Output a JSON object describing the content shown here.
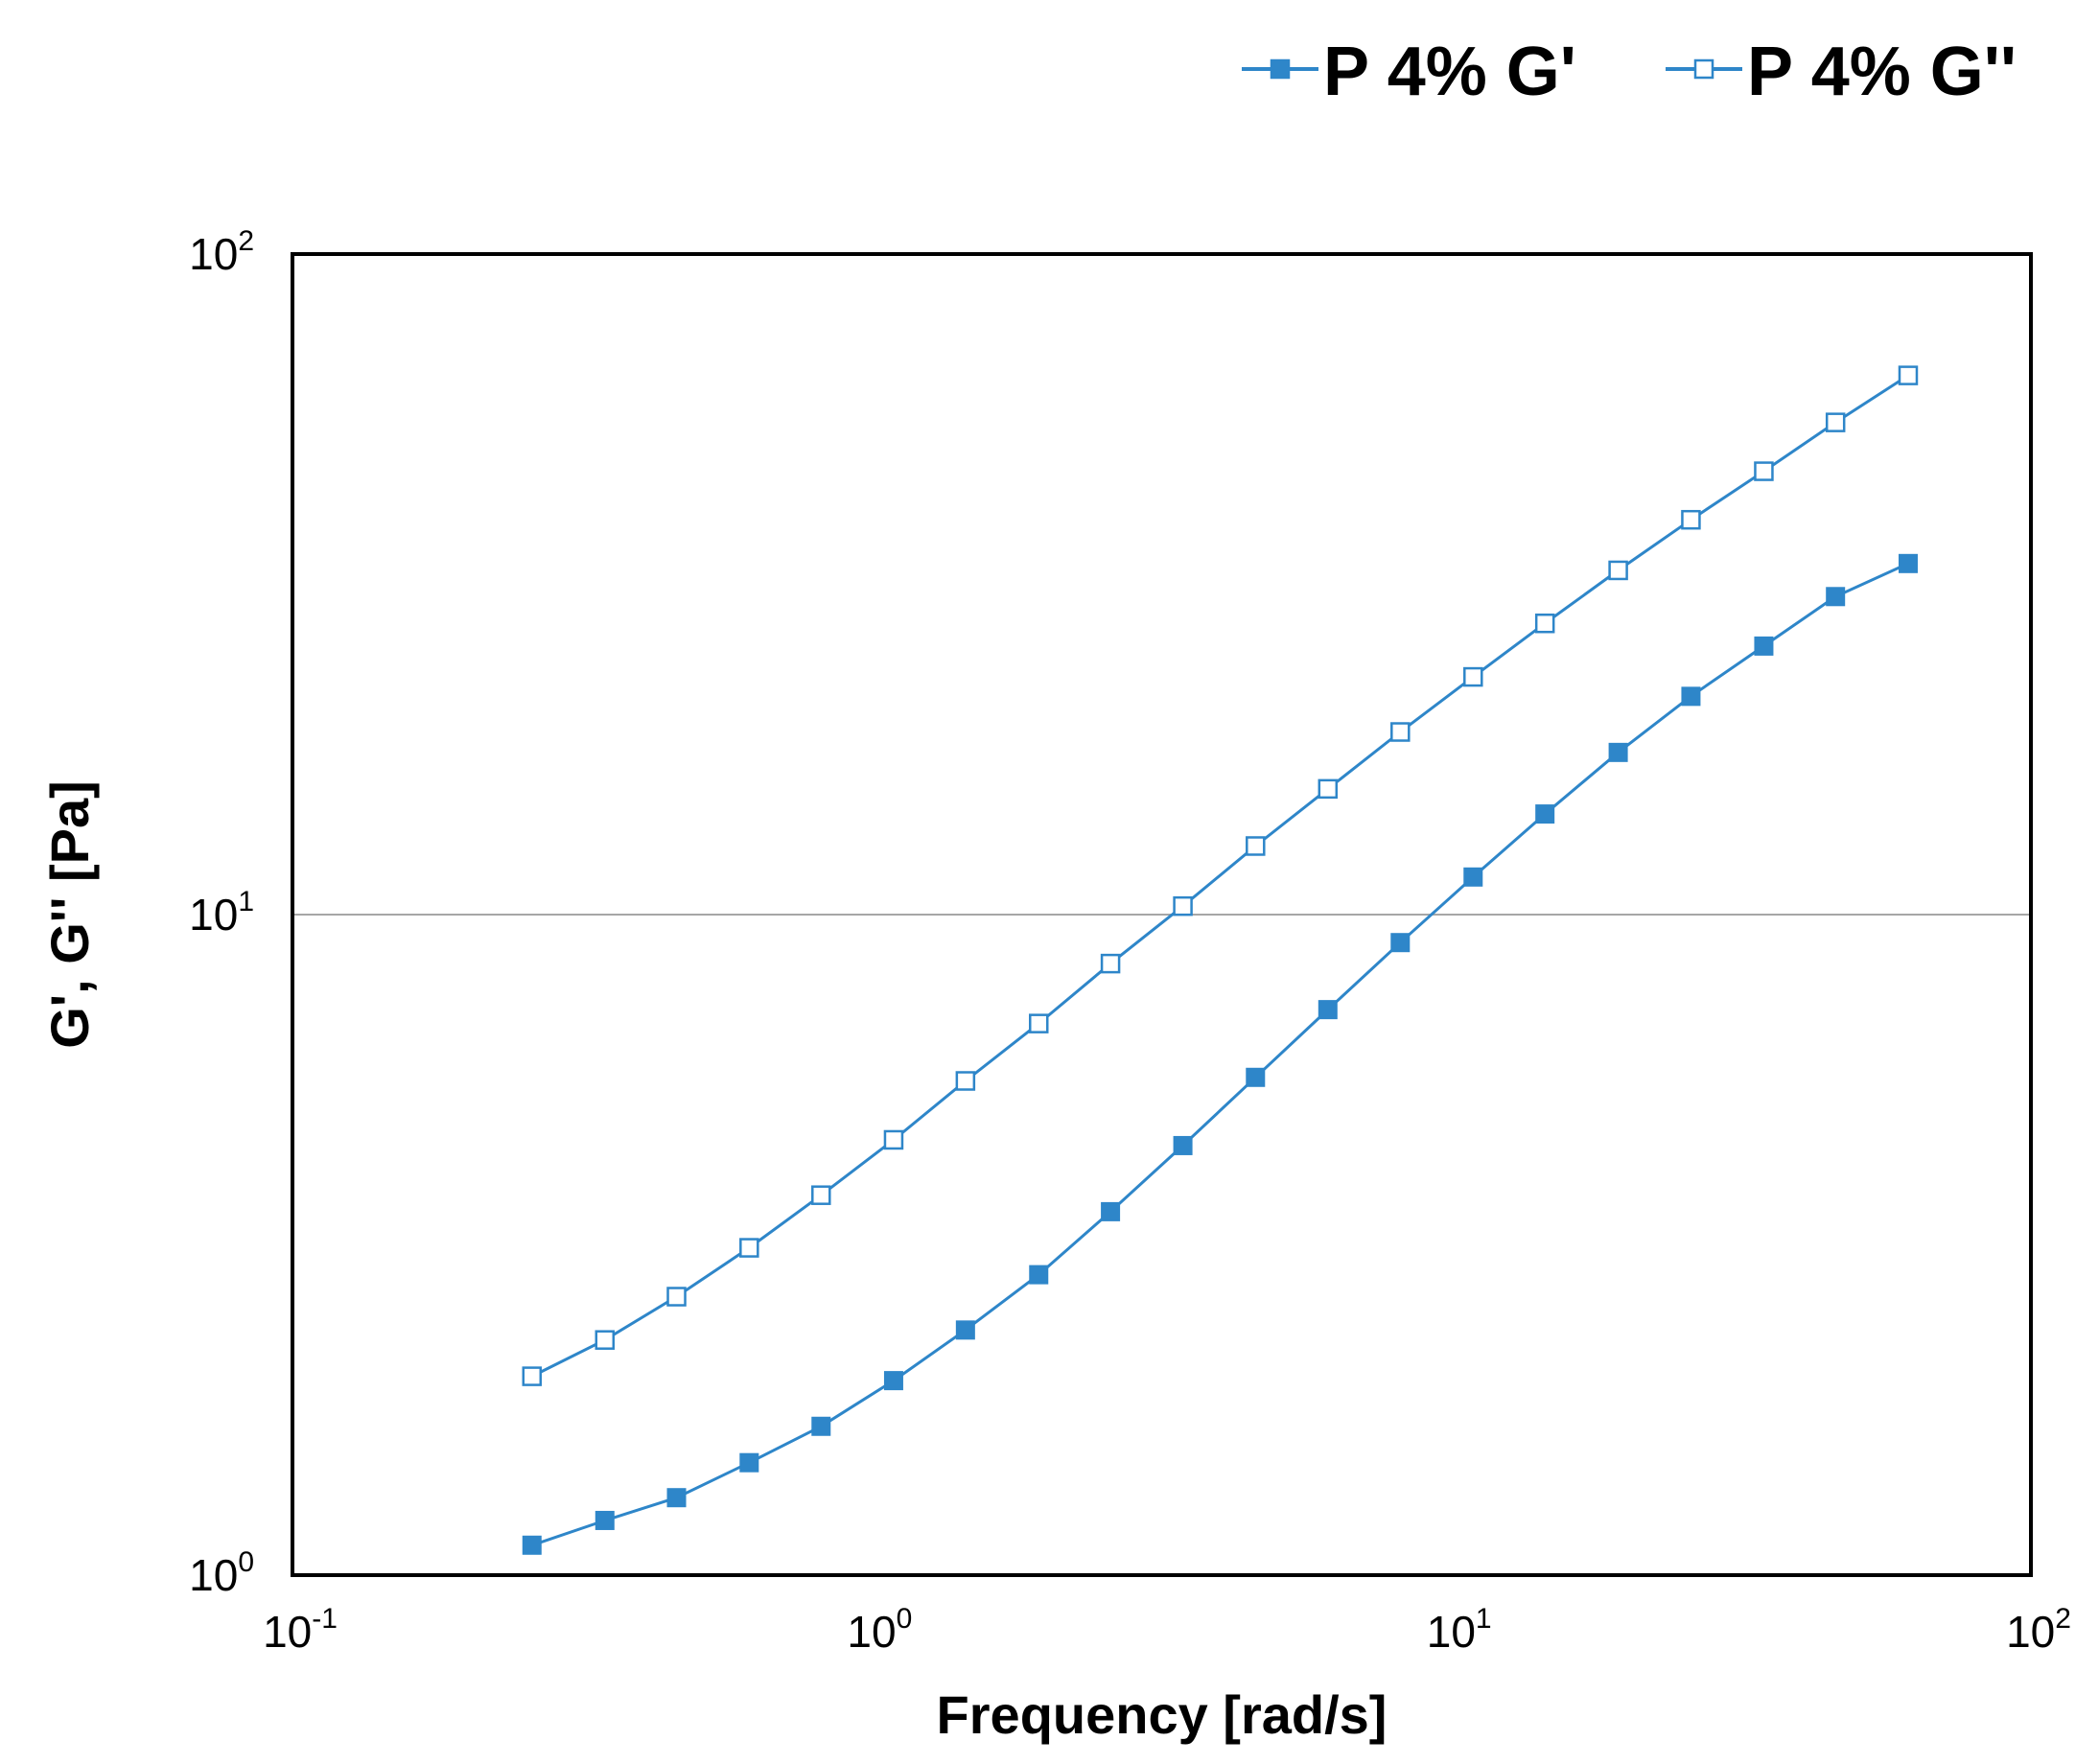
{
  "chart_data": {
    "type": "line",
    "x_scale": "log",
    "y_scale": "log",
    "xlabel": "Frequency [rad/s]",
    "ylabel": "G', G'' [Pa]",
    "xlim": [
      0.1,
      100
    ],
    "ylim": [
      1,
      100
    ],
    "x_ticks": [
      {
        "base": "10",
        "exp": "-1",
        "value": 0.1
      },
      {
        "base": "10",
        "exp": "0",
        "value": 1
      },
      {
        "base": "10",
        "exp": "1",
        "value": 10
      },
      {
        "base": "10",
        "exp": "2",
        "value": 100
      }
    ],
    "y_ticks": [
      {
        "base": "10",
        "exp": "0",
        "value": 1
      },
      {
        "base": "10",
        "exp": "1",
        "value": 10
      },
      {
        "base": "10",
        "exp": "2",
        "value": 100
      }
    ],
    "gridlines_y": [
      10
    ],
    "legend_position": "top-right",
    "x": [
      0.259,
      0.346,
      0.46,
      0.614,
      0.817,
      1.09,
      1.45,
      1.94,
      2.58,
      3.44,
      4.59,
      6.12,
      8.16,
      10.9,
      14.5,
      19.4,
      25.9,
      34.6,
      46.0,
      61.4
    ],
    "series": [
      {
        "name": "P 4% G'",
        "marker": "filled-square",
        "color": "#2e86c9",
        "values": [
          1.11,
          1.21,
          1.31,
          1.48,
          1.68,
          1.97,
          2.35,
          2.85,
          3.55,
          4.47,
          5.67,
          7.18,
          9.07,
          11.4,
          14.2,
          17.6,
          21.4,
          25.5,
          30.3,
          34.0
        ]
      },
      {
        "name": "P 4% G''",
        "marker": "hollow-square",
        "color": "#2e86c9",
        "values": [
          2.0,
          2.27,
          2.64,
          3.13,
          3.76,
          4.56,
          5.6,
          6.84,
          8.43,
          10.3,
          12.7,
          15.5,
          18.9,
          22.9,
          27.6,
          33.2,
          39.6,
          46.9,
          55.6,
          65.5
        ]
      }
    ]
  }
}
